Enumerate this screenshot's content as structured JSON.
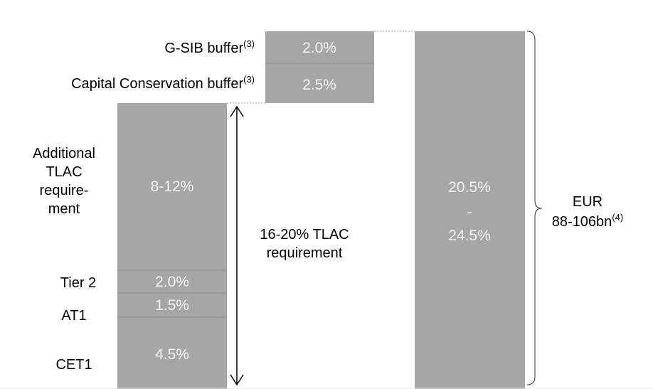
{
  "left_stack": {
    "segments": [
      {
        "label": [
          "CET1"
        ],
        "value": "4.5%"
      },
      {
        "label": [
          "AT1"
        ],
        "value": "1.5%"
      },
      {
        "label": [
          "Tier 2"
        ],
        "value": "2.0%"
      },
      {
        "label": [
          "Additional",
          "TLAC",
          "require-",
          "ment"
        ],
        "value": "8-12%"
      }
    ]
  },
  "buffers": [
    {
      "label": "G-SIB buffer",
      "note": "(3)",
      "value": "2.0%"
    },
    {
      "label": "Capital Conservation buffer",
      "note": "(3)",
      "value": "2.5%"
    }
  ],
  "tlac_arrow": {
    "label": [
      "16-20% TLAC",
      "requirement"
    ]
  },
  "total_bar": {
    "value": [
      "20.5%",
      "-",
      "24.5%"
    ]
  },
  "total_amount": {
    "label": [
      "EUR",
      "88-106bn"
    ],
    "note": "(4)"
  }
}
